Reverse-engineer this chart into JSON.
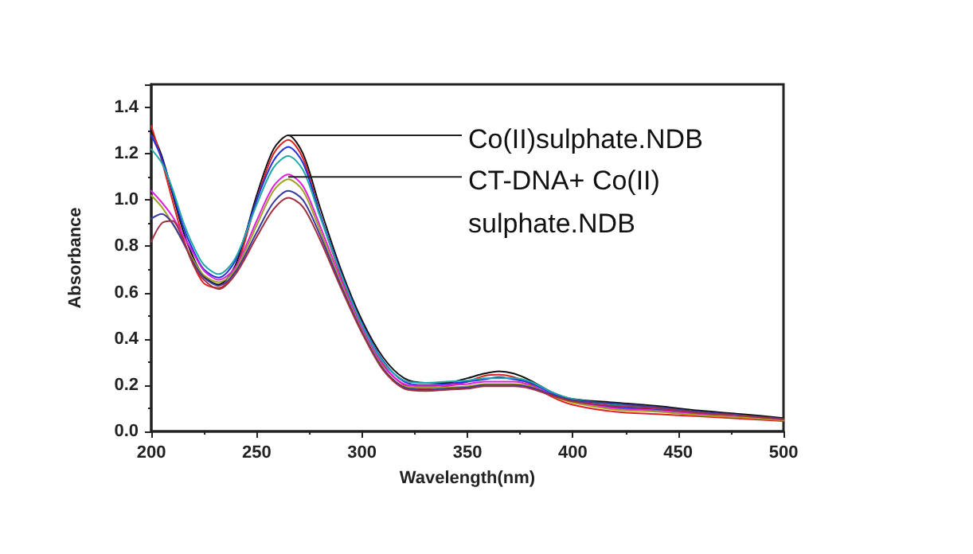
{
  "chart_data": {
    "type": "line",
    "xlabel": "Wavelength(nm)",
    "ylabel": "Absorbance",
    "x": [
      200,
      205,
      210,
      215,
      220,
      225,
      232,
      240,
      250,
      258,
      265,
      272,
      280,
      290,
      300,
      310,
      320,
      330,
      340,
      350,
      358,
      365,
      372,
      380,
      390,
      400,
      420,
      440,
      460,
      480,
      500
    ],
    "series": [
      {
        "color": "#111111",
        "values": [
          1.3,
          1.19,
          1.03,
          0.87,
          0.75,
          0.67,
          0.635,
          0.72,
          1.02,
          1.22,
          1.28,
          1.2,
          0.97,
          0.7,
          0.48,
          0.32,
          0.23,
          0.21,
          0.21,
          0.23,
          0.25,
          0.26,
          0.25,
          0.22,
          0.17,
          0.14,
          0.125,
          0.11,
          0.09,
          0.075,
          0.058
        ]
      },
      {
        "color": "#e02020",
        "values": [
          1.32,
          1.17,
          1.0,
          0.84,
          0.72,
          0.64,
          0.62,
          0.7,
          1.0,
          1.2,
          1.26,
          1.18,
          0.94,
          0.67,
          0.45,
          0.29,
          0.2,
          0.185,
          0.195,
          0.215,
          0.24,
          0.245,
          0.235,
          0.205,
          0.15,
          0.115,
          0.085,
          0.075,
          0.065,
          0.055,
          0.045
        ]
      },
      {
        "color": "#2030e0",
        "values": [
          1.28,
          1.18,
          1.04,
          0.89,
          0.78,
          0.7,
          0.665,
          0.74,
          1.0,
          1.17,
          1.23,
          1.16,
          0.94,
          0.685,
          0.465,
          0.305,
          0.215,
          0.2,
          0.205,
          0.215,
          0.225,
          0.235,
          0.225,
          0.21,
          0.165,
          0.135,
          0.105,
          0.095,
          0.08,
          null,
          null
        ]
      },
      {
        "color": "#20a8a8",
        "values": [
          1.22,
          1.16,
          1.05,
          0.91,
          0.8,
          0.72,
          0.68,
          0.75,
          0.98,
          1.14,
          1.19,
          1.13,
          0.93,
          0.68,
          0.46,
          0.3,
          0.22,
          0.21,
          0.215,
          0.22,
          0.23,
          0.23,
          0.23,
          0.215,
          0.17,
          0.14,
          0.115,
          0.1,
          null,
          null,
          null
        ]
      },
      {
        "color": "#e020e0",
        "values": [
          1.04,
          0.99,
          0.93,
          0.85,
          0.77,
          0.695,
          0.655,
          0.71,
          0.91,
          1.06,
          1.11,
          1.06,
          0.89,
          0.655,
          0.445,
          0.285,
          0.205,
          0.195,
          0.2,
          0.205,
          0.215,
          0.215,
          0.215,
          0.2,
          0.16,
          0.13,
          0.1,
          0.09,
          0.075,
          0.062,
          0.05
        ]
      },
      {
        "color": "#a0a020",
        "values": [
          1.02,
          0.97,
          0.9,
          0.82,
          0.74,
          0.675,
          0.645,
          0.7,
          0.89,
          1.04,
          1.09,
          1.04,
          0.87,
          0.64,
          0.435,
          0.275,
          0.195,
          0.19,
          0.19,
          0.195,
          0.205,
          0.205,
          0.205,
          0.195,
          0.155,
          0.125,
          0.095,
          0.085,
          0.07,
          0.06,
          0.048
        ]
      },
      {
        "color": "#3838a0",
        "values": [
          0.92,
          0.94,
          0.9,
          0.82,
          0.73,
          0.665,
          0.63,
          0.69,
          0.86,
          0.99,
          1.04,
          1.0,
          0.85,
          0.63,
          0.43,
          0.27,
          0.19,
          0.18,
          0.185,
          0.19,
          0.2,
          0.2,
          0.2,
          0.19,
          0.16,
          0.135,
          0.12,
          0.105,
          0.085,
          0.07,
          0.054
        ]
      },
      {
        "color": "#a03040",
        "values": [
          0.82,
          0.9,
          0.91,
          0.83,
          0.72,
          0.655,
          0.615,
          0.68,
          0.84,
          0.96,
          1.01,
          0.97,
          0.83,
          0.62,
          0.425,
          0.265,
          0.185,
          0.175,
          0.18,
          0.185,
          0.195,
          0.195,
          0.195,
          0.185,
          0.155,
          0.13,
          0.11,
          0.1,
          0.08,
          0.068,
          0.052
        ]
      }
    ],
    "xlim": [
      200,
      500
    ],
    "xticks": [
      200,
      250,
      300,
      350,
      400,
      450,
      500
    ],
    "ylim": [
      0,
      1.5
    ],
    "yticks": [
      {
        "value": 0,
        "label": "0.0"
      },
      {
        "value": 0.2,
        "label": "0.2"
      },
      {
        "value": 0.4,
        "label": "0.4"
      },
      {
        "value": 0.6,
        "label": "0.6"
      },
      {
        "value": 0.8,
        "label": "0.8"
      },
      {
        "value": 1.0,
        "label": "1.0"
      },
      {
        "value": 1.2,
        "label": "1.2"
      },
      {
        "value": 1.4,
        "label": "1.4"
      }
    ],
    "annotations": [
      {
        "text": "Co(II)sulphate.NDB",
        "x": 265,
        "y": 1.28
      },
      {
        "text": "CT-DNA+ Co(II) sulphate.NDB",
        "x": 265,
        "y": 1.1
      }
    ],
    "grid": false,
    "marker": "none",
    "line_style": "solid"
  }
}
